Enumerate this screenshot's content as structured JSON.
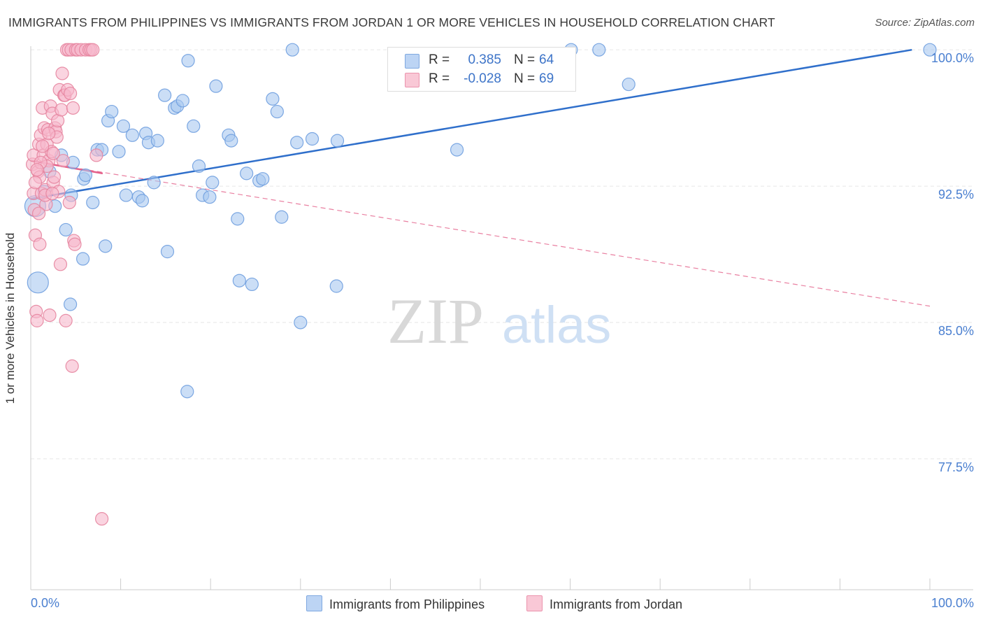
{
  "title": "IMMIGRANTS FROM PHILIPPINES VS IMMIGRANTS FROM JORDAN 1 OR MORE VEHICLES IN HOUSEHOLD CORRELATION CHART",
  "source": "Source: ZipAtlas.com",
  "watermark": {
    "zip": "ZIP",
    "atlas": "atlas"
  },
  "colors": {
    "blue": "#a9c8f0",
    "blue_stroke": "#6f9fdf",
    "blue_line": "#2f6fcb",
    "pink": "#f7b8cb",
    "pink_stroke": "#e6849f",
    "pink_line": "#e4608a",
    "axis_text": "#4a7fd0",
    "grid": "#e6e6e6"
  },
  "legend_top": {
    "rows": [
      {
        "r_label": "R =",
        "r_value": "0.385",
        "n_label": "N =",
        "n_value": "64",
        "color": "blue"
      },
      {
        "r_label": "R =",
        "r_value": "-0.028",
        "n_label": "N =",
        "n_value": "69",
        "color": "pink"
      }
    ]
  },
  "legend_bottom": [
    {
      "label": "Immigrants from Philippines",
      "color": "blue"
    },
    {
      "label": "Immigrants from Jordan",
      "color": "pink"
    }
  ],
  "chart_data": {
    "type": "scatter",
    "title": "IMMIGRANTS FROM PHILIPPINES VS IMMIGRANTS FROM JORDAN 1 OR MORE VEHICLES IN HOUSEHOLD CORRELATION CHART",
    "xlabel": "",
    "ylabel": "1 or more Vehicles in Household",
    "xlim": [
      0,
      100
    ],
    "ylim": [
      70.3,
      101.2
    ],
    "x_tick_labels": [
      "0.0%",
      "100.0%"
    ],
    "y_ticks": [
      {
        "value": 100.0,
        "label": "100.0%"
      },
      {
        "value": 92.5,
        "label": "92.5%"
      },
      {
        "value": 85.0,
        "label": "85.0%"
      },
      {
        "value": 77.5,
        "label": "77.5%"
      }
    ],
    "grid": true,
    "legend_position": "top-center",
    "series": [
      {
        "name": "Immigrants from Philippines",
        "color": "blue",
        "points": [
          [
            0.5,
            91.4
          ],
          [
            0.8,
            87.2
          ],
          [
            1.5,
            92.2
          ],
          [
            2.1,
            93.3
          ],
          [
            2.7,
            91.4
          ],
          [
            3.4,
            94.2
          ],
          [
            3.9,
            90.1
          ],
          [
            4.7,
            93.8
          ],
          [
            4.5,
            92.0
          ],
          [
            4.4,
            86.0
          ],
          [
            5.9,
            92.9
          ],
          [
            6.1,
            93.1
          ],
          [
            5.8,
            88.5
          ],
          [
            6.9,
            91.6
          ],
          [
            7.4,
            94.5
          ],
          [
            7.9,
            94.5
          ],
          [
            8.3,
            89.2
          ],
          [
            8.6,
            96.1
          ],
          [
            9.0,
            96.6
          ],
          [
            9.8,
            94.4
          ],
          [
            10.3,
            95.8
          ],
          [
            10.6,
            92.0
          ],
          [
            11.3,
            95.3
          ],
          [
            12.0,
            91.9
          ],
          [
            12.4,
            91.7
          ],
          [
            12.8,
            95.4
          ],
          [
            13.1,
            94.9
          ],
          [
            13.7,
            92.7
          ],
          [
            14.1,
            95.0
          ],
          [
            14.9,
            97.5
          ],
          [
            15.2,
            88.9
          ],
          [
            16.0,
            96.8
          ],
          [
            16.3,
            96.9
          ],
          [
            16.9,
            97.2
          ],
          [
            17.5,
            99.4
          ],
          [
            17.4,
            81.2
          ],
          [
            18.1,
            95.8
          ],
          [
            18.7,
            93.6
          ],
          [
            19.1,
            92.0
          ],
          [
            19.9,
            91.9
          ],
          [
            20.2,
            92.7
          ],
          [
            20.6,
            98.0
          ],
          [
            22.0,
            95.3
          ],
          [
            22.3,
            95.0
          ],
          [
            23.0,
            90.7
          ],
          [
            23.2,
            87.3
          ],
          [
            24.0,
            93.2
          ],
          [
            24.6,
            87.1
          ],
          [
            25.4,
            92.8
          ],
          [
            25.8,
            92.9
          ],
          [
            26.9,
            97.3
          ],
          [
            27.4,
            96.6
          ],
          [
            27.9,
            90.8
          ],
          [
            29.1,
            100.0
          ],
          [
            29.6,
            94.9
          ],
          [
            30.0,
            85.0
          ],
          [
            31.3,
            95.1
          ],
          [
            34.0,
            87.0
          ],
          [
            34.1,
            95.0
          ],
          [
            47.4,
            94.5
          ],
          [
            60.1,
            100.0
          ],
          [
            63.2,
            100.0
          ],
          [
            66.5,
            98.1
          ],
          [
            100.0,
            100.0
          ]
        ],
        "trend": {
          "x": [
            0,
            98
          ],
          "y": [
            91.8,
            100.0
          ],
          "style": "solid"
        }
      },
      {
        "name": "Immigrants from Jordan",
        "color": "pink",
        "points": [
          [
            0.2,
            93.7
          ],
          [
            0.3,
            92.1
          ],
          [
            0.4,
            91.2
          ],
          [
            0.5,
            89.8
          ],
          [
            0.3,
            94.2
          ],
          [
            0.6,
            85.6
          ],
          [
            0.7,
            85.1
          ],
          [
            0.8,
            93.3
          ],
          [
            0.9,
            94.8
          ],
          [
            1.0,
            89.3
          ],
          [
            1.1,
            95.3
          ],
          [
            1.2,
            92.1
          ],
          [
            1.3,
            96.8
          ],
          [
            1.4,
            94.2
          ],
          [
            1.5,
            95.7
          ],
          [
            1.6,
            92.3
          ],
          [
            1.7,
            91.5
          ],
          [
            1.8,
            94.8
          ],
          [
            1.9,
            95.6
          ],
          [
            2.0,
            93.9
          ],
          [
            2.1,
            85.4
          ],
          [
            2.2,
            96.9
          ],
          [
            2.3,
            94.4
          ],
          [
            2.4,
            96.5
          ],
          [
            2.5,
            92.7
          ],
          [
            2.6,
            93.0
          ],
          [
            2.7,
            95.7
          ],
          [
            2.8,
            95.5
          ],
          [
            2.9,
            95.2
          ],
          [
            3.0,
            96.1
          ],
          [
            3.1,
            92.2
          ],
          [
            3.2,
            97.8
          ],
          [
            3.3,
            88.2
          ],
          [
            3.4,
            96.7
          ],
          [
            3.5,
            98.7
          ],
          [
            3.6,
            93.9
          ],
          [
            3.7,
            97.5
          ],
          [
            3.8,
            97.5
          ],
          [
            3.9,
            85.1
          ],
          [
            4.0,
            100.0
          ],
          [
            4.1,
            97.8
          ],
          [
            4.2,
            100.0
          ],
          [
            4.3,
            91.6
          ],
          [
            4.4,
            97.6
          ],
          [
            4.5,
            100.0
          ],
          [
            4.6,
            82.6
          ],
          [
            4.7,
            96.8
          ],
          [
            4.8,
            89.5
          ],
          [
            4.9,
            89.3
          ],
          [
            5.0,
            100.0
          ],
          [
            5.2,
            100.0
          ],
          [
            5.6,
            100.0
          ],
          [
            6.1,
            100.0
          ],
          [
            6.5,
            100.0
          ],
          [
            6.7,
            100.0
          ],
          [
            6.9,
            100.0
          ],
          [
            7.3,
            94.2
          ],
          [
            7.9,
            74.2
          ],
          [
            1.0,
            93.0
          ],
          [
            1.8,
            93.6
          ],
          [
            2.5,
            94.3
          ],
          [
            1.3,
            94.7
          ],
          [
            2.0,
            95.4
          ],
          [
            0.5,
            92.7
          ],
          [
            0.9,
            91.0
          ],
          [
            1.6,
            92.0
          ],
          [
            2.4,
            92.1
          ],
          [
            1.1,
            93.8
          ],
          [
            0.7,
            93.4
          ]
        ],
        "trend_solid": {
          "x": [
            0,
            8
          ],
          "y": [
            93.9,
            93.2
          ]
        },
        "trend": {
          "x": [
            0,
            100
          ],
          "y": [
            93.9,
            85.9
          ],
          "style": "dashed"
        }
      }
    ]
  }
}
